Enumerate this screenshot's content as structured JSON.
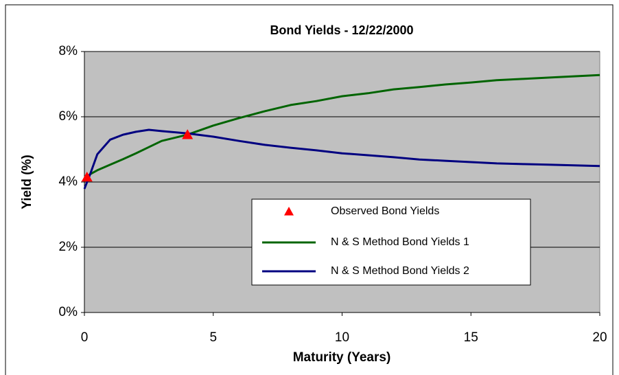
{
  "chart_data": {
    "type": "line",
    "title": "Bond Yields - 12/22/2000",
    "x_label": "Maturity (Years)",
    "y_label": "Yield (%)",
    "xlim": [
      0,
      20
    ],
    "xticks": [
      0,
      5,
      10,
      15,
      20
    ],
    "ylim": [
      0,
      8
    ],
    "yticks": [
      {
        "value": 0,
        "label": "0%"
      },
      {
        "value": 2,
        "label": "2%"
      },
      {
        "value": 4,
        "label": "4%"
      },
      {
        "value": 6,
        "label": "6%"
      },
      {
        "value": 8,
        "label": "8%"
      }
    ],
    "grid": true,
    "series": [
      {
        "name": "Observed Bond Yields",
        "color": "#ff0000",
        "marker": "triangle",
        "x": [
          0.1,
          4
        ],
        "values": [
          4.15,
          5.45
        ]
      },
      {
        "name": "N & S Method Bond Yields 1",
        "color": "#006400",
        "marker": "none",
        "x": [
          0,
          0.25,
          0.5,
          1,
          1.5,
          2,
          2.5,
          3,
          4,
          5,
          6,
          7,
          8,
          9,
          10,
          11,
          12,
          13,
          14,
          15,
          16,
          17,
          18,
          19,
          20
        ],
        "values": [
          4.1,
          4.25,
          4.36,
          4.53,
          4.7,
          4.88,
          5.07,
          5.26,
          5.45,
          5.73,
          5.96,
          6.17,
          6.36,
          6.48,
          6.63,
          6.72,
          6.84,
          6.91,
          6.99,
          7.05,
          7.12,
          7.16,
          7.2,
          7.24,
          7.28
        ]
      },
      {
        "name": "N & S Method Bond Yields 2",
        "color": "#000080",
        "marker": "none",
        "x": [
          0,
          0.25,
          0.5,
          1,
          1.5,
          2,
          2.5,
          3,
          4,
          5,
          6,
          7,
          8,
          9,
          10,
          11,
          12,
          13,
          14,
          15,
          16,
          17,
          18,
          19,
          20
        ],
        "values": [
          3.79,
          4.3,
          4.85,
          5.3,
          5.45,
          5.54,
          5.6,
          5.56,
          5.49,
          5.39,
          5.26,
          5.14,
          5.05,
          4.97,
          4.88,
          4.82,
          4.76,
          4.69,
          4.65,
          4.61,
          4.57,
          4.55,
          4.53,
          4.51,
          4.49
        ]
      }
    ]
  }
}
